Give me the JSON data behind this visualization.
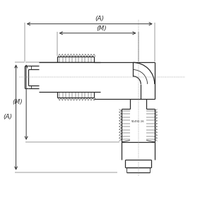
{
  "line_color": "#2a2a2a",
  "dim_color": "#333333",
  "dashed_color": "#999999",
  "gray_fill": "#b0b0b0",
  "light_gray": "#d0d0d0",
  "figsize": [
    3.0,
    3.0
  ],
  "dpi": 100,
  "xlim": [
    0,
    10
  ],
  "ylim": [
    0,
    10
  ]
}
